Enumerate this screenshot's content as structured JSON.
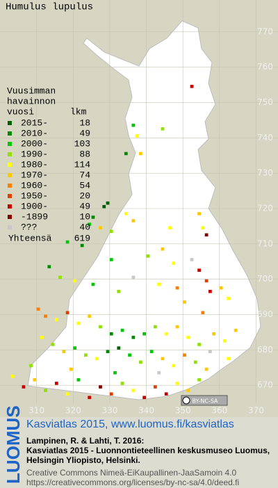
{
  "title": "Humulus lupulus",
  "legend": {
    "heading": [
      "Vuusimman",
      "havainnon",
      "vuosi"
    ],
    "count_heading": "lkm",
    "entries": [
      {
        "label": "2015-",
        "count": 18,
        "color": "#006000"
      },
      {
        "label": "2010-",
        "count": 49,
        "color": "#008c00"
      },
      {
        "label": "2000-",
        "count": 103,
        "color": "#00c800"
      },
      {
        "label": "1990-",
        "count": 88,
        "color": "#90e000"
      },
      {
        "label": "1980-",
        "count": 114,
        "color": "#ffff00"
      },
      {
        "label": "1970-",
        "count": 74,
        "color": "#ffc800"
      },
      {
        "label": "1960-",
        "count": 54,
        "color": "#ff8000"
      },
      {
        "label": "1950-",
        "count": 20,
        "color": "#e04000"
      },
      {
        "label": "1900-",
        "count": 49,
        "color": "#c80000"
      },
      {
        "label": "-1899",
        "count": 10,
        "color": "#800000"
      },
      {
        "label": "???",
        "count": 40,
        "color": "#c8c8c8"
      }
    ],
    "total_label": "Yhteensä",
    "total": 619
  },
  "xticks": [
    310,
    320,
    330,
    340,
    350,
    360,
    370
  ],
  "yticks": [
    770,
    760,
    750,
    740,
    730,
    720,
    710,
    700,
    690,
    680,
    670
  ],
  "xlim": [
    300,
    376
  ],
  "ylim": [
    661,
    779
  ],
  "observations": [
    [
      352,
      754,
      8
    ],
    [
      336,
      743,
      2
    ],
    [
      344,
      742,
      3
    ],
    [
      337,
      740,
      4
    ],
    [
      334,
      735,
      1
    ],
    [
      338,
      735,
      5
    ],
    [
      328,
      720,
      0
    ],
    [
      329,
      721,
      0
    ],
    [
      334,
      718,
      4
    ],
    [
      336,
      716,
      5
    ],
    [
      325,
      717,
      1
    ],
    [
      324,
      715,
      2
    ],
    [
      327,
      714,
      5
    ],
    [
      330,
      713,
      3
    ],
    [
      354,
      718,
      5
    ],
    [
      355,
      714,
      4
    ],
    [
      356,
      712,
      9
    ],
    [
      346,
      714,
      4
    ],
    [
      318,
      710,
      2
    ],
    [
      322,
      709,
      1
    ],
    [
      330,
      705,
      2
    ],
    [
      340,
      706,
      3
    ],
    [
      344,
      708,
      5
    ],
    [
      347,
      704,
      4
    ],
    [
      352,
      705,
      10
    ],
    [
      354,
      702,
      8
    ],
    [
      356,
      699,
      7
    ],
    [
      357,
      696,
      8
    ],
    [
      360,
      697,
      5
    ],
    [
      362,
      694,
      4
    ],
    [
      313,
      703,
      1
    ],
    [
      316,
      700,
      3
    ],
    [
      320,
      699,
      4
    ],
    [
      325,
      698,
      2
    ],
    [
      332,
      696,
      3
    ],
    [
      336,
      700,
      10
    ],
    [
      343,
      698,
      4
    ],
    [
      348,
      697,
      6
    ],
    [
      350,
      693,
      5
    ],
    [
      355,
      690,
      6
    ],
    [
      310,
      691,
      6
    ],
    [
      312,
      689,
      6
    ],
    [
      315,
      688,
      4
    ],
    [
      318,
      690,
      7
    ],
    [
      321,
      687,
      4
    ],
    [
      324,
      689,
      5
    ],
    [
      327,
      686,
      3
    ],
    [
      330,
      684,
      1
    ],
    [
      333,
      685,
      2
    ],
    [
      336,
      683,
      1
    ],
    [
      339,
      684,
      2
    ],
    [
      342,
      686,
      3
    ],
    [
      345,
      684,
      4
    ],
    [
      348,
      686,
      5
    ],
    [
      351,
      683,
      4
    ],
    [
      354,
      681,
      3
    ],
    [
      358,
      684,
      5
    ],
    [
      361,
      682,
      4
    ],
    [
      364,
      685,
      5
    ],
    [
      311,
      683,
      4
    ],
    [
      314,
      681,
      3
    ],
    [
      317,
      679,
      5
    ],
    [
      320,
      680,
      2
    ],
    [
      323,
      678,
      3
    ],
    [
      326,
      677,
      4
    ],
    [
      329,
      679,
      1
    ],
    [
      332,
      680,
      0
    ],
    [
      335,
      678,
      2
    ],
    [
      338,
      676,
      3
    ],
    [
      341,
      679,
      2
    ],
    [
      344,
      677,
      5
    ],
    [
      347,
      675,
      4
    ],
    [
      350,
      678,
      6
    ],
    [
      353,
      676,
      3
    ],
    [
      356,
      674,
      5
    ],
    [
      303,
      672,
      4
    ],
    [
      306,
      669,
      8
    ],
    [
      309,
      671,
      5
    ],
    [
      312,
      668,
      3
    ],
    [
      315,
      670,
      8
    ],
    [
      318,
      667,
      4
    ],
    [
      321,
      671,
      2
    ],
    [
      324,
      666,
      8
    ],
    [
      327,
      669,
      9
    ],
    [
      330,
      667,
      7
    ],
    [
      333,
      670,
      3
    ],
    [
      336,
      668,
      4
    ],
    [
      339,
      666,
      8
    ],
    [
      342,
      669,
      7
    ],
    [
      345,
      667,
      8
    ],
    [
      348,
      670,
      4
    ],
    [
      351,
      668,
      5
    ],
    [
      354,
      671,
      3
    ],
    [
      308,
      675,
      3
    ],
    [
      319,
      674,
      5
    ],
    [
      331,
      673,
      2
    ],
    [
      343,
      673,
      10
    ],
    [
      357,
      679,
      10
    ],
    [
      362,
      677,
      4
    ]
  ],
  "badge": "BY-NC-SA",
  "footer": {
    "logo": "LUOMUS",
    "link": "Kasviatlas 2015, www.luomus.fi/kasviatlas",
    "citation": [
      "Lampinen, R. & Lahti, T. 2016:",
      "Kasviatlas 2015 - Luonnontieteellinen keskusmuseo Luomus,",
      "Helsingin Yliopisto, Helsinki."
    ],
    "license": [
      "Creative Commons Nimeä-EiKaupallinen-JaaSamoin 4.0",
      "https://creativecommons.org/licenses/by-nc-sa/4.0/deed.fi"
    ]
  }
}
